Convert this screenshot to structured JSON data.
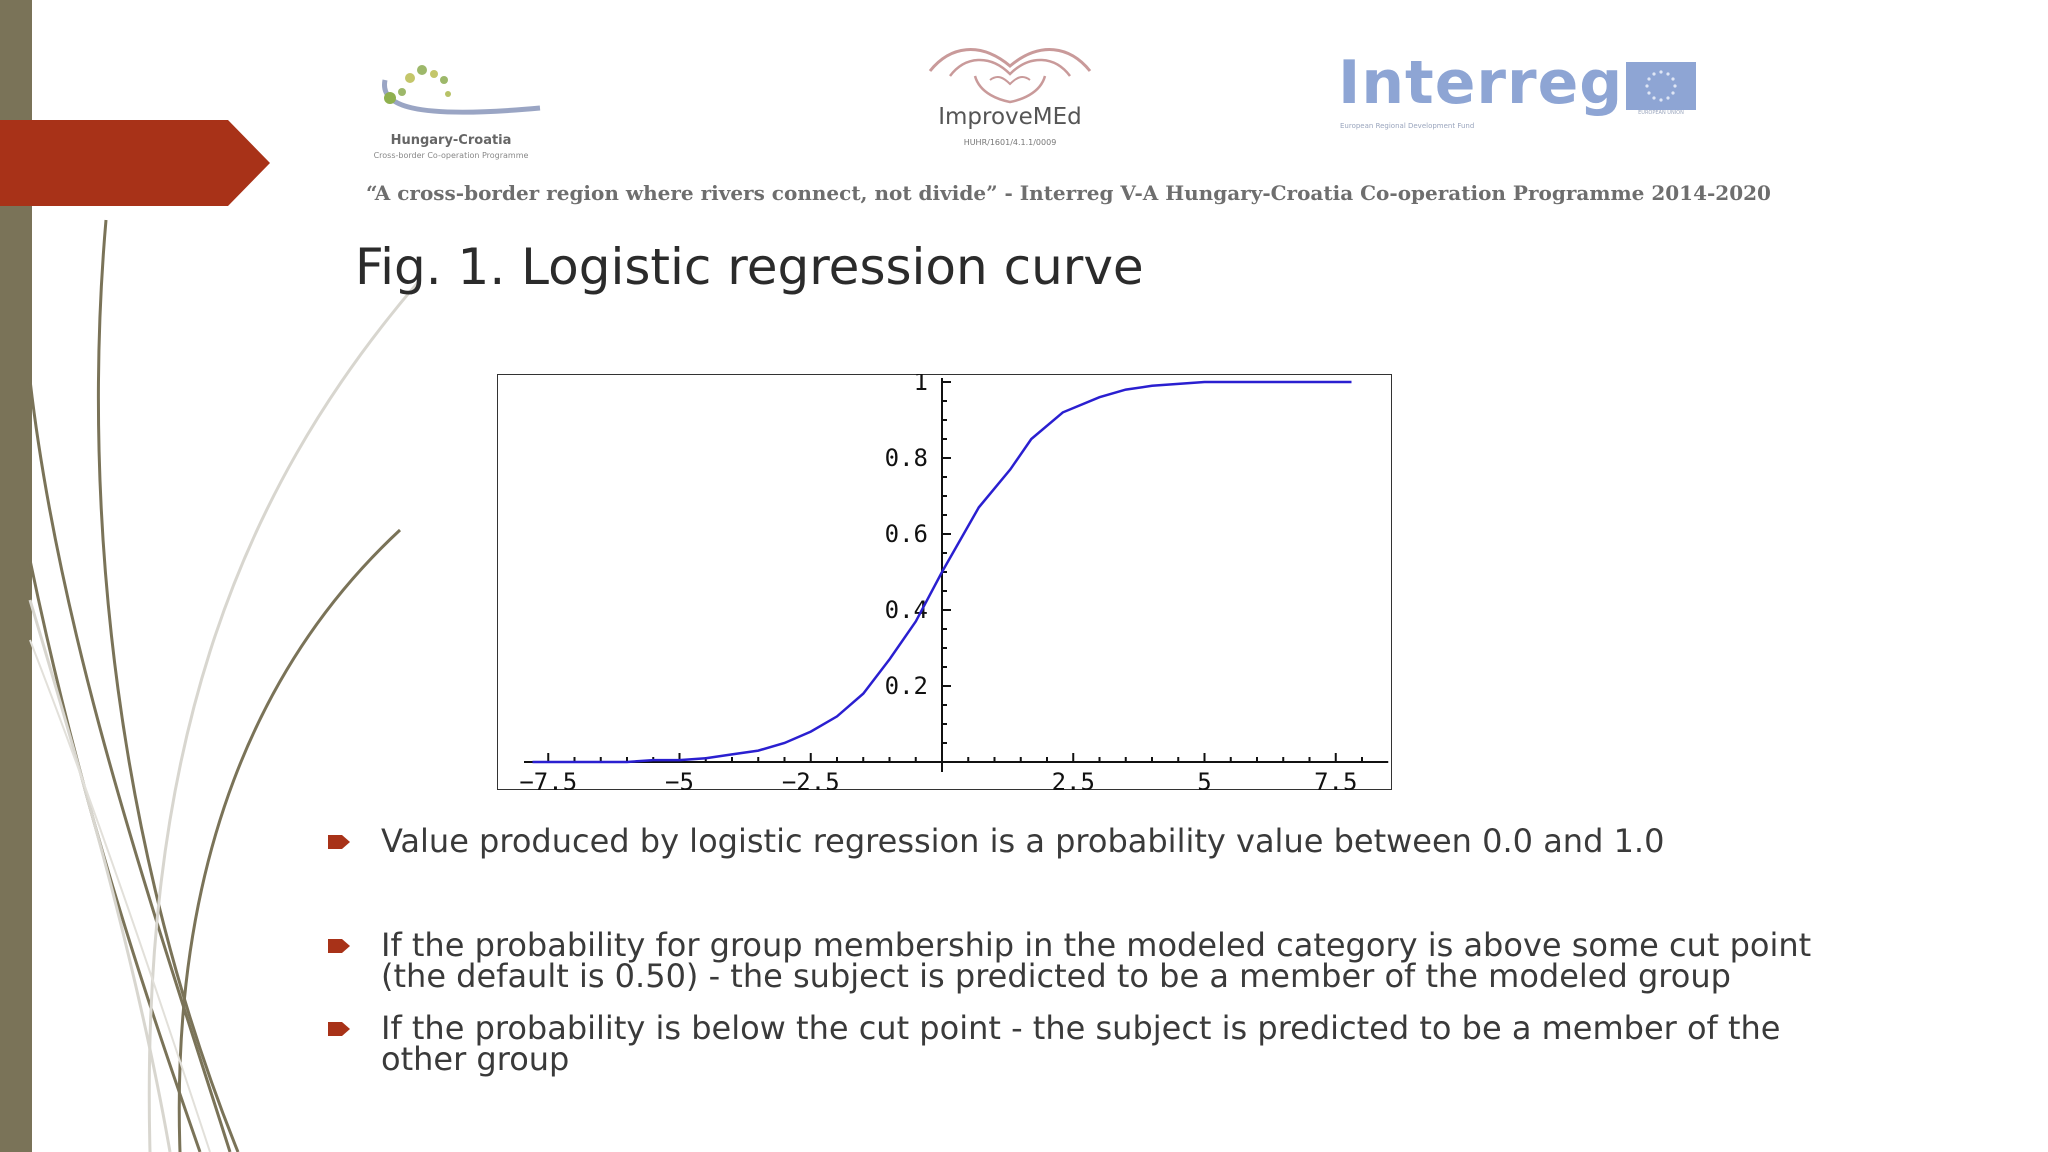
{
  "header": {
    "logo_left": {
      "title": "Hungary-Croatia",
      "subtitle": "Cross-border Co-operation Programme"
    },
    "logo_center": {
      "title": "ImproveMEd",
      "subtitle": "HUHR/1601/4.1.1/0009"
    },
    "logo_right": {
      "name": "Interreg",
      "subtitle": "European Regional Development Fund",
      "flag_label": "EUROPEAN UNION"
    },
    "tagline": "“A cross-border region where rivers connect, not divide” - Interreg V-A Hungary-Croatia Co-operation Programme 2014-2020"
  },
  "slide_title": "Fig. 1. Logistic regression curve",
  "colors": {
    "curve": "#2a1fd0",
    "accent_red": "#a83218",
    "side_bar": "#7a7358"
  },
  "chart_data": {
    "type": "line",
    "title": "",
    "xlabel": "",
    "ylabel": "",
    "xlim": [
      -8,
      8.5
    ],
    "ylim": [
      0,
      1
    ],
    "x_ticks": [
      -7.5,
      -5,
      -2.5,
      2.5,
      5,
      7.5
    ],
    "y_ticks": [
      0.2,
      0.4,
      0.6,
      0.8,
      1
    ],
    "x_tick_labels": [
      "−7.5",
      "−5",
      "−2.5",
      "2.5",
      "5",
      "7.5"
    ],
    "y_tick_labels": [
      "0.2",
      "0.4",
      "0.6",
      "0.8",
      "1"
    ],
    "grid": false,
    "series": [
      {
        "x": [
          -7.8,
          -7.0,
          -6.5,
          -6.0,
          -5.5,
          -5.0,
          -4.5,
          -4.0,
          -3.5,
          -3.0,
          -2.5,
          -2.0,
          -1.5,
          -1.0,
          -0.5,
          0.0,
          0.7,
          1.3,
          1.7,
          2.3,
          3.0,
          3.5,
          4.0,
          4.5,
          5.0,
          6.0,
          6.5,
          7.0,
          7.8
        ],
        "y": [
          0.0,
          0.0,
          0.0,
          0.0,
          0.005,
          0.005,
          0.01,
          0.02,
          0.03,
          0.05,
          0.08,
          0.12,
          0.18,
          0.27,
          0.37,
          0.5,
          0.67,
          0.77,
          0.85,
          0.92,
          0.96,
          0.98,
          0.99,
          0.995,
          1.0,
          1.0,
          1.0,
          1.0,
          1.0
        ]
      }
    ]
  },
  "bullets": [
    "Value produced by logistic regression is a probability value between 0.0 and 1.0",
    "If the probability for group membership in the modeled category is above some cut point (the default is 0.50) - the subject is predicted to be a member of the modeled group",
    "If the probability is below the cut point - the subject is predicted to be a member of the other group"
  ]
}
